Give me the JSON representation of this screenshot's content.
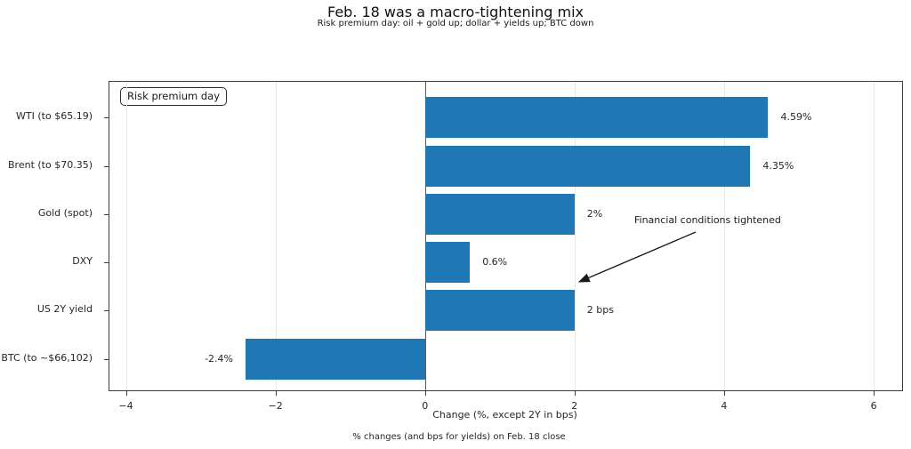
{
  "header": {
    "title": "Feb. 18 was a macro-tightening mix",
    "subtitle": "Risk premium day: oil + gold up; dollar + yields up; BTC down"
  },
  "legend": {
    "label": "Risk premium day"
  },
  "annotation": {
    "text": "Financial conditions tightened"
  },
  "footer": {
    "note": "% changes (and bps for yields) on Feb. 18 close"
  },
  "chart_data": {
    "type": "bar",
    "orientation": "horizontal",
    "title": "Feb. 18 was a macro-tightening mix",
    "subtitle": "Risk premium day: oil + gold up; dollar + yields up; BTC down",
    "categories": [
      "WTI (to $65.19)",
      "Brent (to $70.35)",
      "Gold (spot)",
      "DXY",
      "US 2Y yield",
      "BTC (to ~$66,102)"
    ],
    "values": [
      4.59,
      4.35,
      2,
      0.6,
      2,
      -2.4
    ],
    "value_labels": [
      "4.59%",
      "4.35%",
      "2%",
      "0.6%",
      "2 bps",
      "-2.4%"
    ],
    "xlabel": "Change (%, except 2Y in bps)",
    "ylabel": "",
    "xlim": [
      -4.22,
      6.38
    ],
    "xticks": [
      -4,
      -2,
      0,
      2,
      4,
      6
    ],
    "xtick_labels": [
      "−4",
      "−2",
      "0",
      "2",
      "4",
      "6"
    ],
    "grid": true,
    "zero_line": true,
    "legend_position": "upper left",
    "bar_color": "#1f77b4",
    "annotation_text": "Financial conditions tightened"
  }
}
